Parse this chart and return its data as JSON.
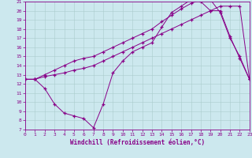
{
  "xlabel": "Windchill (Refroidissement éolien,°C)",
  "bg_color": "#cce8ee",
  "grid_color": "#aacccc",
  "line_color": "#880088",
  "xmin": 0,
  "xmax": 23,
  "ymin": 7,
  "ymax": 21,
  "line1_x": [
    0,
    1,
    2,
    3,
    4,
    5,
    6,
    7,
    8,
    9,
    10,
    11,
    12,
    13,
    14,
    15,
    16,
    17,
    18,
    19,
    20,
    21,
    22,
    23
  ],
  "line1_y": [
    12.5,
    12.5,
    11.5,
    9.8,
    8.8,
    8.5,
    8.2,
    7.2,
    9.8,
    13.2,
    14.5,
    15.5,
    16.0,
    16.5,
    18.2,
    19.8,
    20.5,
    21.2,
    21.0,
    20.0,
    20.0,
    17.2,
    14.8,
    12.5
  ],
  "line2_x": [
    0,
    1,
    2,
    3,
    4,
    5,
    6,
    7,
    8,
    9,
    10,
    11,
    12,
    13,
    14,
    15,
    16,
    17,
    18,
    19,
    20,
    21,
    22,
    23
  ],
  "line2_y": [
    12.5,
    12.5,
    12.8,
    13.0,
    13.2,
    13.5,
    13.7,
    14.0,
    14.5,
    15.0,
    15.5,
    16.0,
    16.5,
    17.0,
    17.5,
    18.0,
    18.5,
    19.0,
    19.5,
    20.0,
    20.5,
    20.5,
    20.5,
    12.5
  ],
  "line3_x": [
    0,
    1,
    2,
    3,
    4,
    5,
    6,
    7,
    8,
    9,
    10,
    11,
    12,
    13,
    14,
    15,
    16,
    17,
    18,
    19,
    20,
    21,
    22,
    23
  ],
  "line3_y": [
    12.5,
    12.5,
    13.0,
    13.5,
    14.0,
    14.5,
    14.8,
    15.0,
    15.5,
    16.0,
    16.5,
    17.0,
    17.5,
    18.0,
    18.8,
    19.5,
    20.2,
    20.8,
    21.2,
    21.2,
    19.8,
    17.0,
    15.0,
    12.5
  ],
  "tick_fontsize": 4.5,
  "xlabel_fontsize": 5.5
}
